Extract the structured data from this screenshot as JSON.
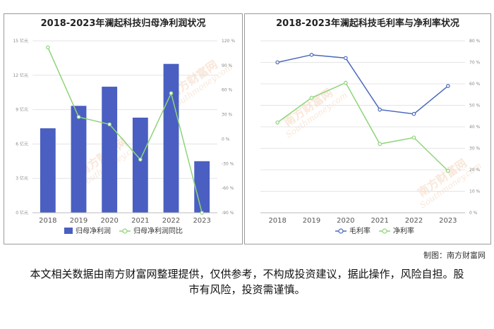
{
  "chart_data": [
    {
      "type": "bar+line",
      "title": "2018-2023年澜起科技归母净利润状况",
      "categories": [
        "2018",
        "2019",
        "2020",
        "2021",
        "2022",
        "2023"
      ],
      "series": [
        {
          "name": "归母净利润",
          "type": "bar",
          "axis": "left",
          "values": [
            7.37,
            9.33,
            11.0,
            8.3,
            12.99,
            4.5
          ],
          "color": "#4a5fc1"
        },
        {
          "name": "归母净利润同比",
          "type": "line",
          "axis": "right",
          "values": [
            112,
            27,
            18,
            -25,
            56,
            -90
          ],
          "color": "#8fd47a"
        }
      ],
      "y_left": {
        "min": 0,
        "max": 15,
        "ticks": [
          "0 亿元",
          "3 亿元",
          "6 亿元",
          "9 亿元",
          "12 亿元",
          "15 亿元"
        ]
      },
      "y_right": {
        "min": -90,
        "max": 120,
        "ticks": [
          "-90 %",
          "-60 %",
          "-30 %",
          "0 %",
          "30 %",
          "60 %",
          "90 %",
          "120 %"
        ]
      },
      "grid": true,
      "legend": "bottom"
    },
    {
      "type": "line",
      "title": "2018-2023年澜起科技毛利率与净利率状况",
      "categories": [
        "2018",
        "2019",
        "2020",
        "2021",
        "2022",
        "2023"
      ],
      "series": [
        {
          "name": "毛利率",
          "values": [
            70,
            73.5,
            72,
            48,
            46,
            59
          ],
          "color": "#4a69bd"
        },
        {
          "name": "净利率",
          "values": [
            42,
            53.5,
            60.5,
            32,
            35,
            19.5
          ],
          "color": "#8fd47a"
        }
      ],
      "y": {
        "min": 0,
        "max": 80,
        "ticks": [
          "0 %",
          "10 %",
          "20 %",
          "30 %",
          "40 %",
          "50 %",
          "60 %",
          "70 %",
          "80 %"
        ]
      },
      "grid": true,
      "legend": "bottom"
    }
  ],
  "watermark": {
    "text_cn": "南方财富网",
    "text_en": "Southmoney.com"
  },
  "footer": {
    "credit": "制图：南方财富网",
    "disclaimer": "本文相关数据由南方财富网整理提供，仅供参考，不构成投资建议，据此操作，风险自担。股市有风险，投资需谨慎。"
  }
}
